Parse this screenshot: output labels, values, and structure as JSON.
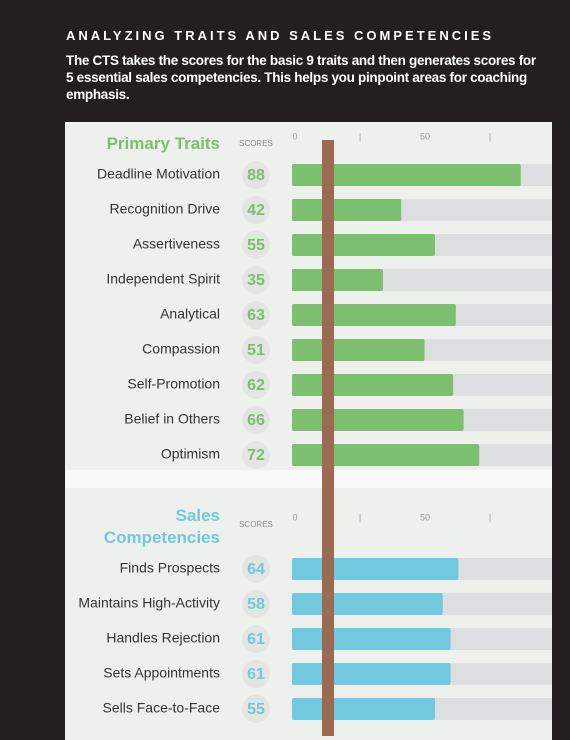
{
  "header": {
    "title": "ANALYZING TRAITS AND SALES COMPETENCIES",
    "text": "The CTS takes the scores for the basic 9 traits and then generates scores for 5 essential sales competencies. This helps you pinpoint areas for coaching emphasis."
  },
  "chart_data": [
    {
      "type": "bar",
      "title": "Primary Traits",
      "scores_label": "SCORES",
      "categories": [
        "Deadline Motivation",
        "Recognition Drive",
        "Assertiveness",
        "Independent Spirit",
        "Analytical",
        "Compassion",
        "Self-Promotion",
        "Belief in Others",
        "Optimism"
      ],
      "values": [
        88,
        42,
        55,
        35,
        63,
        51,
        62,
        66,
        72
      ],
      "color": "#7cbf6e",
      "xlim": [
        0,
        100
      ],
      "xticks": [
        0,
        {
          "value": 25,
          "label": "|"
        },
        50,
        {
          "value": 75,
          "label": "|"
        }
      ]
    },
    {
      "type": "bar",
      "title": "Sales Competencies",
      "scores_label": "SCORES",
      "categories": [
        "Finds Prospects",
        "Maintains High-Activity",
        "Handles Rejection",
        "Sets Appointments",
        "Sells Face-to-Face"
      ],
      "values": [
        64,
        58,
        61,
        61,
        55
      ],
      "color": "#72c8de",
      "xlim": [
        0,
        100
      ],
      "xticks": [
        0,
        {
          "value": 25,
          "label": "|"
        },
        50,
        {
          "value": 75,
          "label": "|"
        }
      ]
    }
  ]
}
